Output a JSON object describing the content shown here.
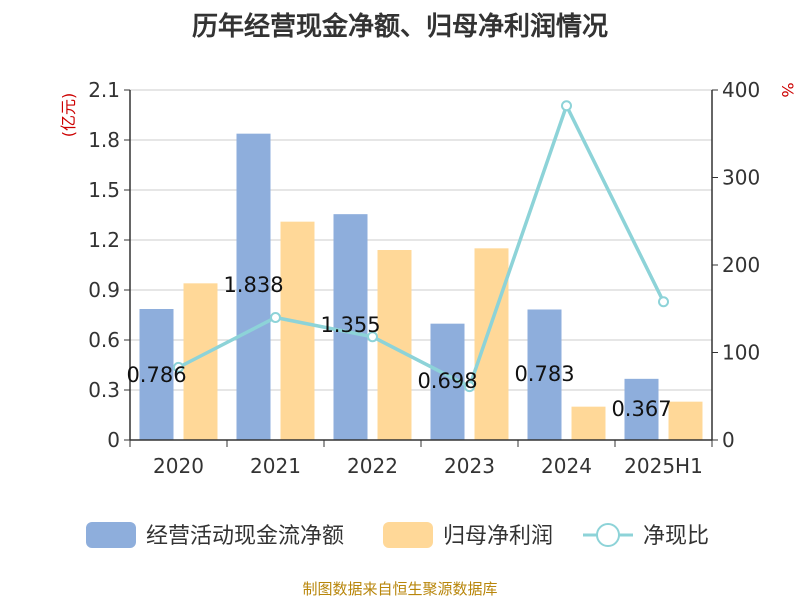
{
  "chart_data": {
    "type": "bar",
    "title": "历年经营现金净额、归母净利润情况",
    "categories": [
      "2020",
      "2021",
      "2022",
      "2023",
      "2024",
      "2025H1"
    ],
    "series": [
      {
        "name": "经营活动现金流净额",
        "type": "bar",
        "axis": "left",
        "color": "#8eaedc",
        "values": [
          0.786,
          1.838,
          1.355,
          0.698,
          0.783,
          0.367
        ],
        "labels": [
          "0.786",
          "1.838",
          "1.355",
          "0.698",
          "0.783",
          "0.367"
        ]
      },
      {
        "name": "归母净利润",
        "type": "bar",
        "axis": "left",
        "color": "#ffd898",
        "values": [
          0.94,
          1.31,
          1.14,
          1.15,
          0.2,
          0.23
        ]
      },
      {
        "name": "净现比",
        "type": "line",
        "axis": "right",
        "color": "#8dd3d8",
        "values": [
          83,
          140,
          118,
          61,
          382,
          158
        ]
      }
    ],
    "y_left": {
      "label": "(亿元)",
      "min": 0,
      "max": 2.1,
      "ticks": [
        "0",
        "0.3",
        "0.6",
        "0.9",
        "1.2",
        "1.5",
        "1.8",
        "2.1"
      ]
    },
    "y_right": {
      "label": "%",
      "min": 0,
      "max": 400,
      "ticks": [
        "0",
        "100",
        "200",
        "300",
        "400"
      ]
    },
    "grid": true,
    "legend_position": "bottom",
    "source": "制图数据来自恒生聚源数据库"
  }
}
